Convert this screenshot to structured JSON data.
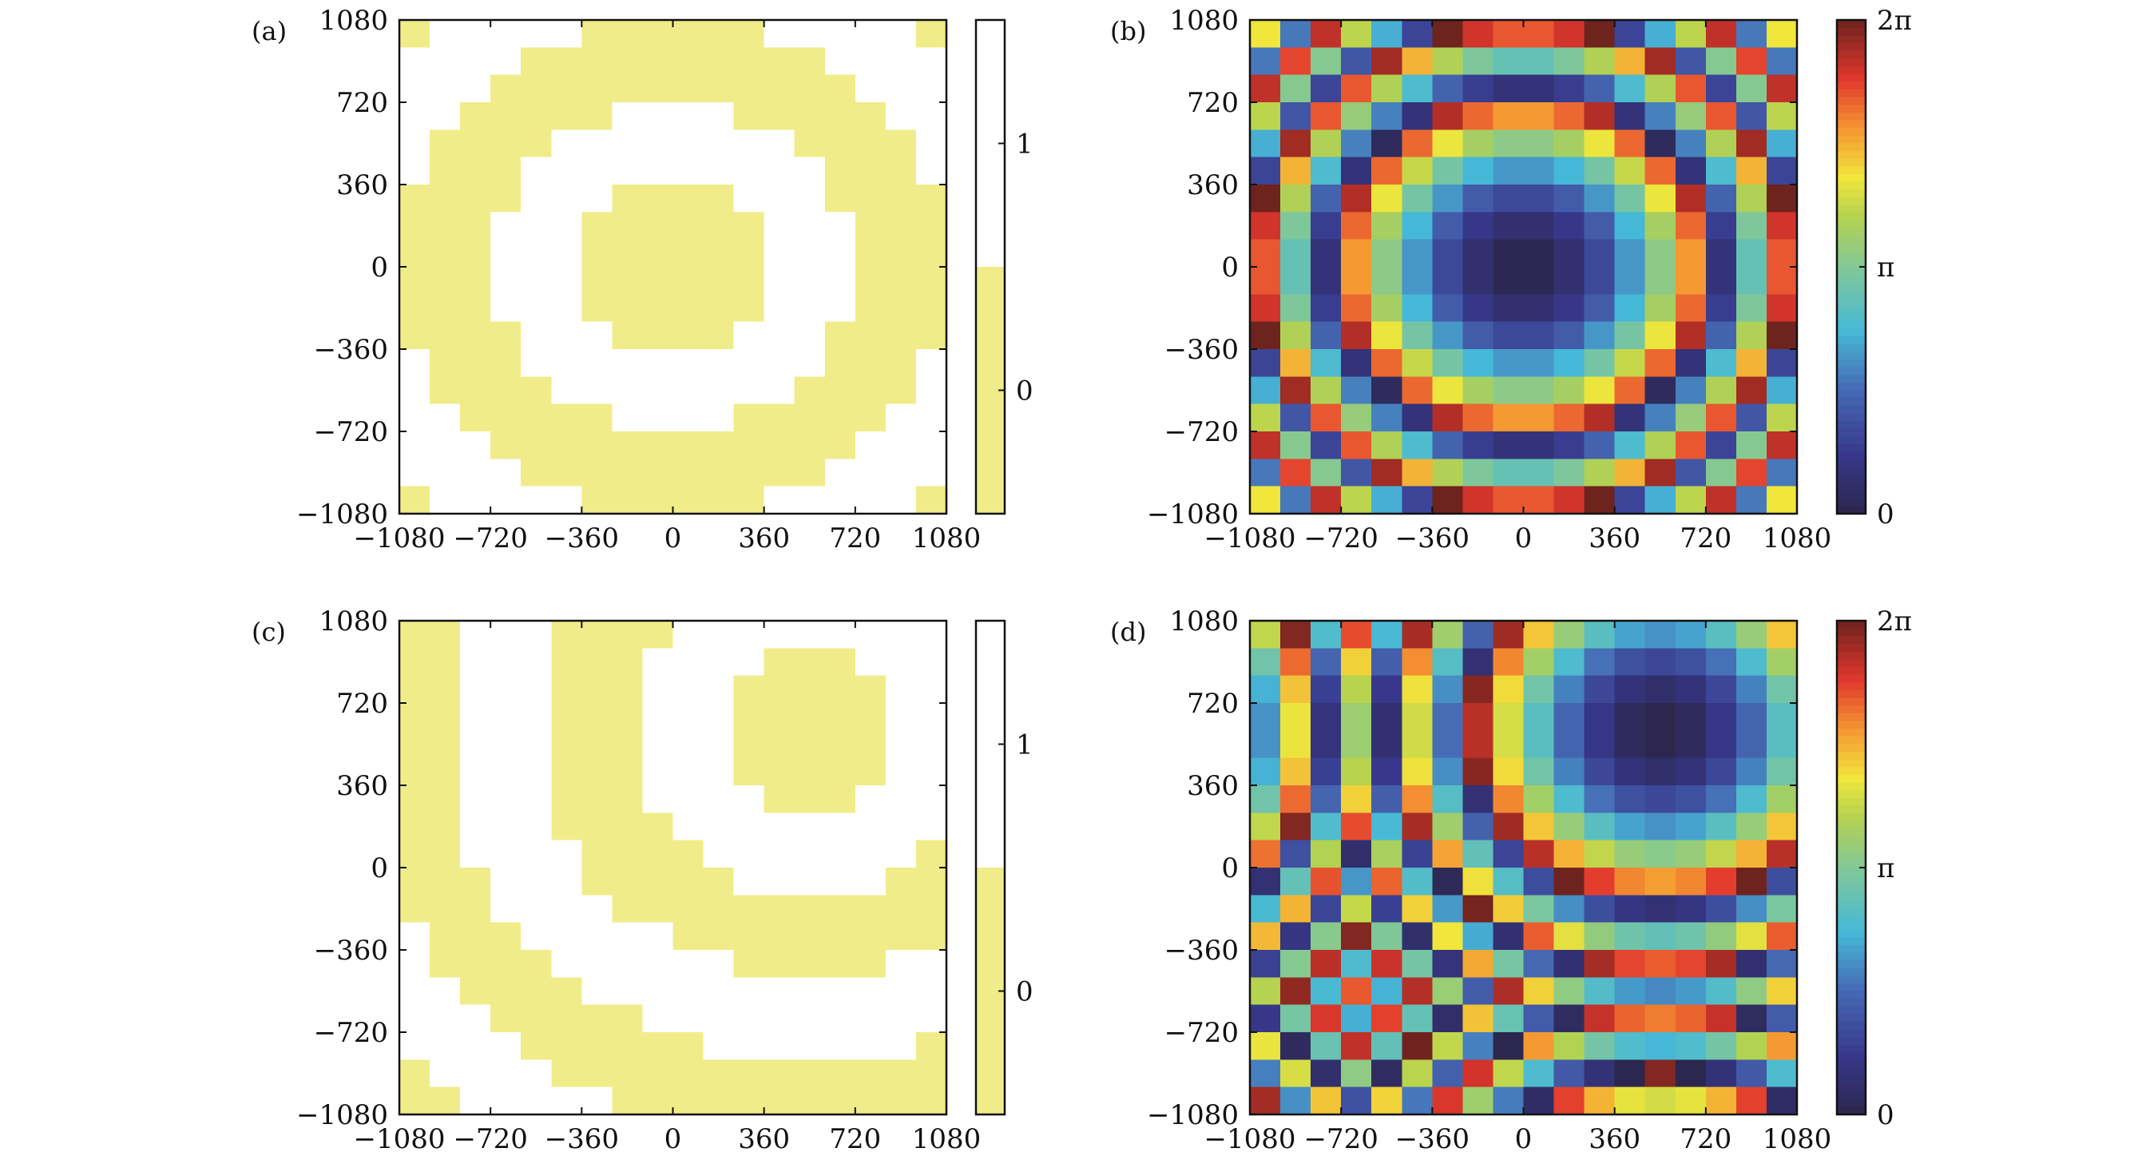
{
  "chart_data": [
    {
      "panel_label": "(a)",
      "type": "heatmap",
      "encoding": "binary",
      "grid": false,
      "x_range": [
        -1080,
        1080
      ],
      "y_range": [
        -1080,
        1080
      ],
      "xticks": [
        "−1080",
        "−720",
        "−360",
        "0",
        "360",
        "720",
        "1080"
      ],
      "yticks": [
        "1080",
        "720",
        "360",
        "0",
        "−360",
        "−720",
        "−1080"
      ],
      "colorbar": {
        "ticks": [
          "1",
          "0"
        ],
        "range": [
          -0.5,
          1.5
        ],
        "colors": [
          "#f0ec8a",
          "#ffffff"
        ]
      },
      "cells_x": 18,
      "cells_y": 18,
      "pattern": {
        "type": "rings",
        "center": [
          0,
          0
        ],
        "ring_spacing": 360,
        "value_at_center": 0
      }
    },
    {
      "panel_label": "(b)",
      "type": "heatmap",
      "encoding": "phase",
      "grid": false,
      "x_range": [
        -1080,
        1080
      ],
      "y_range": [
        -1080,
        1080
      ],
      "xticks": [
        "−1080",
        "−720",
        "−360",
        "0",
        "360",
        "720",
        "1080"
      ],
      "yticks": [
        "1080",
        "720",
        "360",
        "0",
        "−360",
        "−720",
        "−1080"
      ],
      "colorbar": {
        "ticks": [
          "2π",
          "π",
          "0"
        ],
        "range": [
          0,
          6.2832
        ]
      },
      "cells_x": 18,
      "cells_y": 18,
      "pattern": {
        "type": "quadratic-phase",
        "center": [
          0,
          0
        ],
        "phase_at_center": 0
      }
    },
    {
      "panel_label": "(c)",
      "type": "heatmap",
      "encoding": "binary",
      "grid": false,
      "x_range": [
        -1080,
        1080
      ],
      "y_range": [
        -1080,
        1080
      ],
      "xticks": [
        "−1080",
        "−720",
        "−360",
        "0",
        "360",
        "720",
        "1080"
      ],
      "yticks": [
        "1080",
        "720",
        "360",
        "0",
        "−360",
        "−720",
        "−1080"
      ],
      "colorbar": {
        "ticks": [
          "1",
          "0"
        ],
        "range": [
          -0.5,
          1.5
        ],
        "colors": [
          "#f0ec8a",
          "#ffffff"
        ]
      },
      "cells_x": 18,
      "cells_y": 18,
      "pattern": {
        "type": "rings",
        "center": [
          540,
          600
        ],
        "ring_spacing": 360,
        "value_at_center": 0
      }
    },
    {
      "panel_label": "(d)",
      "type": "heatmap",
      "encoding": "phase",
      "grid": false,
      "x_range": [
        -1080,
        1080
      ],
      "y_range": [
        -1080,
        1080
      ],
      "xticks": [
        "−1080",
        "−720",
        "−360",
        "0",
        "360",
        "720",
        "1080"
      ],
      "yticks": [
        "1080",
        "720",
        "360",
        "0",
        "−360",
        "−720",
        "−1080"
      ],
      "colorbar": {
        "ticks": [
          "2π",
          "π",
          "0"
        ],
        "range": [
          0,
          6.2832
        ]
      },
      "cells_x": 18,
      "cells_y": 18,
      "pattern": {
        "type": "quadratic-phase",
        "center": [
          540,
          600
        ],
        "phase_at_center": 0
      }
    }
  ]
}
